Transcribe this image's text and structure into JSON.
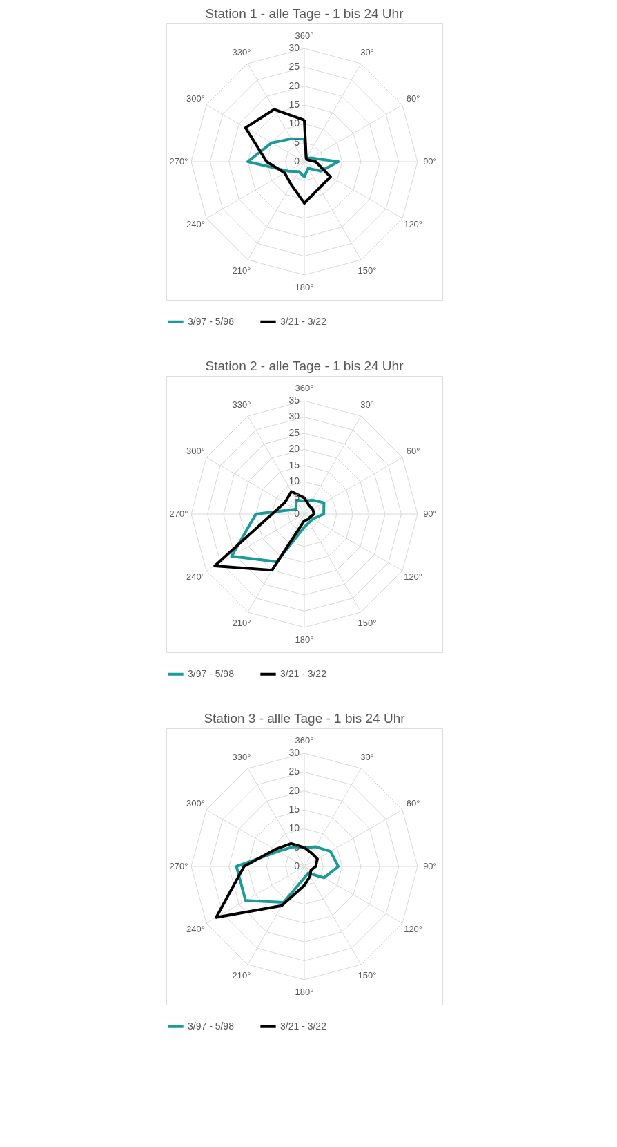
{
  "chart_data": [
    {
      "type": "radar",
      "title": "Station 1 - alle Tage - 1 bis 24 Uhr",
      "categories": [
        "360°",
        "30°",
        "60°",
        "90°",
        "120°",
        "150°",
        "180°",
        "210°",
        "240°",
        "270°",
        "300°",
        "330°"
      ],
      "ylim": [
        0,
        30
      ],
      "yticks": [
        0,
        5,
        10,
        15,
        20,
        25,
        30
      ],
      "grid": true,
      "legend": "bottom",
      "line_style": "solid",
      "marker": "none",
      "series": [
        {
          "name": "3/97 - 5/98",
          "color": "#1a9a98",
          "values": [
            6,
            1,
            2,
            9,
            5,
            2,
            4,
            3,
            5,
            15,
            10,
            7
          ]
        },
        {
          "name": "3/21 - 3/22",
          "color": "#000000",
          "values": [
            11,
            1,
            1,
            3,
            8,
            8,
            11,
            7,
            6,
            10,
            18,
            16
          ]
        }
      ]
    },
    {
      "type": "radar",
      "title": "Station 2 - alle Tage - 1 bis 24 Uhr",
      "categories": [
        "360°",
        "30°",
        "60°",
        "90°",
        "120°",
        "150°",
        "180°",
        "210°",
        "240°",
        "270°",
        "300°",
        "330°"
      ],
      "ylim": [
        0,
        35
      ],
      "yticks": [
        0,
        5,
        10,
        15,
        20,
        25,
        30,
        35
      ],
      "grid": true,
      "legend": "bottom",
      "line_style": "solid",
      "marker": "none",
      "series": [
        {
          "name": "3/97 - 5/98",
          "color": "#1a9a98",
          "values": [
            4,
            5,
            7,
            6,
            3,
            3,
            4,
            17,
            26,
            15,
            3,
            5
          ]
        },
        {
          "name": "3/21 - 3/22",
          "color": "#000000",
          "values": [
            5,
            3,
            3,
            3,
            2,
            2,
            2,
            20,
            32,
            10,
            7,
            8
          ]
        }
      ]
    },
    {
      "type": "radar",
      "title": "Station 3 - allle Tage - 1 bis 24 Uhr",
      "categories": [
        "360°",
        "30°",
        "60°",
        "90°",
        "120°",
        "150°",
        "180°",
        "210°",
        "240°",
        "270°",
        "300°",
        "330°"
      ],
      "ylim": [
        0,
        30
      ],
      "yticks": [
        0,
        5,
        10,
        15,
        20,
        25,
        30
      ],
      "grid": true,
      "legend": "bottom",
      "line_style": "solid",
      "marker": "none",
      "series": [
        {
          "name": "3/97 - 5/98",
          "color": "#1a9a98",
          "values": [
            5,
            6,
            8,
            9,
            6,
            2,
            3,
            11,
            18,
            18,
            8,
            6
          ]
        },
        {
          "name": "3/21 - 3/22",
          "color": "#000000",
          "values": [
            5,
            4,
            4,
            3,
            2,
            3,
            5,
            12,
            27,
            16,
            9,
            7
          ]
        }
      ]
    }
  ]
}
